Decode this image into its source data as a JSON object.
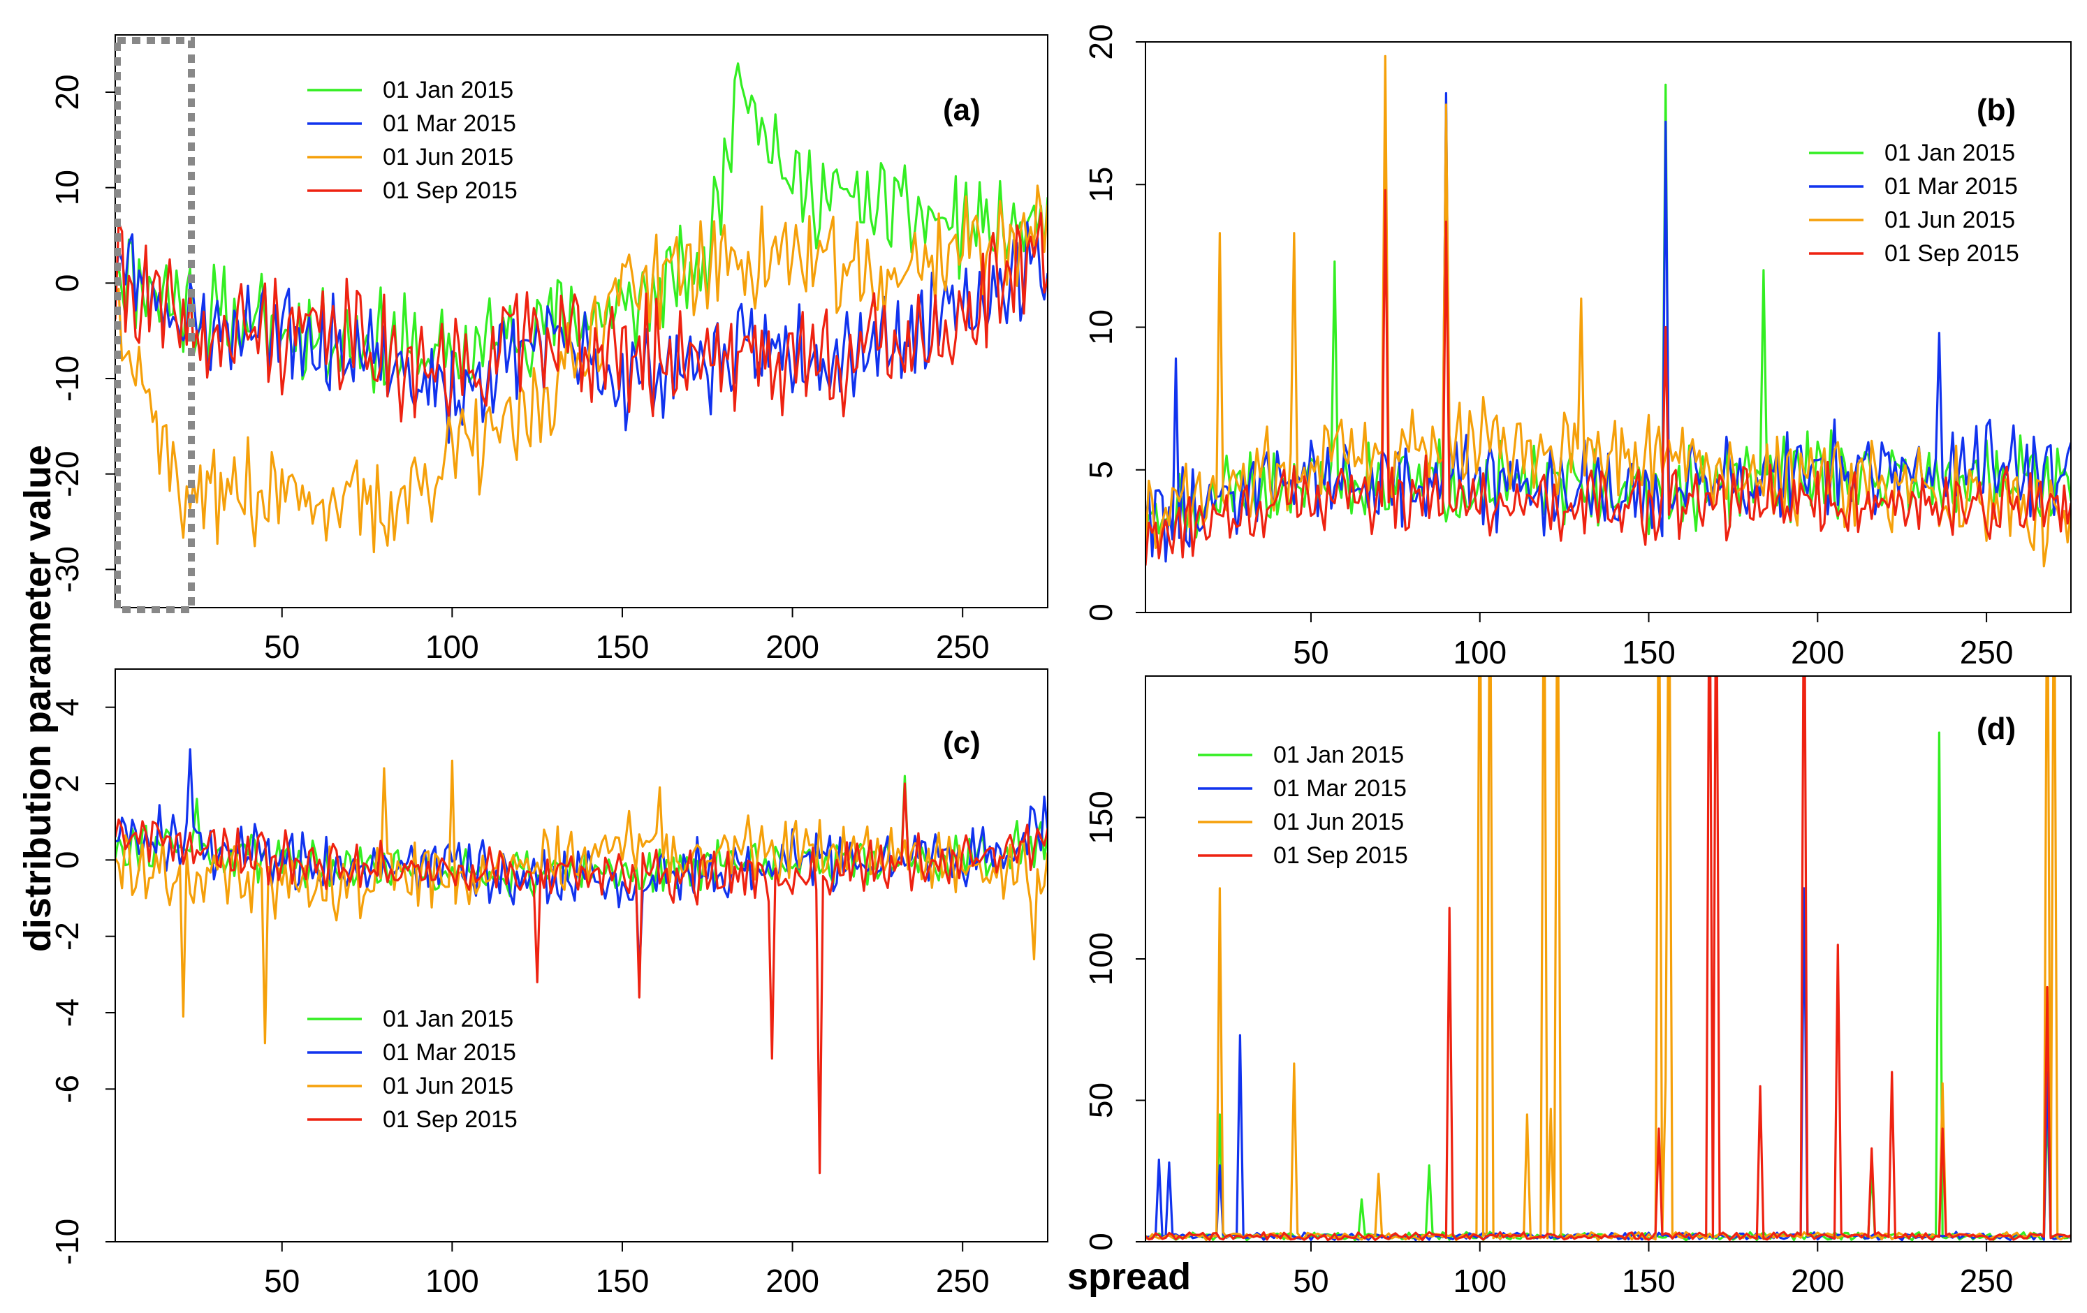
{
  "figure": {
    "y_axis_title": "distribution parameter value",
    "x_axis_title": "spread"
  },
  "colors": {
    "01 Jan 2015": "#33ee22",
    "01 Mar 2015": "#1133ee",
    "01 Jun 2015": "#f5a00a",
    "01 Sep 2015": "#ee2211",
    "highlight_box": "#888888"
  },
  "chart_data": [
    {
      "type": "line",
      "id": "a",
      "panel_label": "(a)",
      "title": "",
      "xlabel": "",
      "ylabel": "",
      "xlim": [
        1,
        275
      ],
      "ylim": [
        -34,
        26
      ],
      "x_ticks": [
        50,
        100,
        150,
        200,
        250
      ],
      "y_ticks": [
        -30,
        -20,
        -10,
        0,
        10,
        20
      ],
      "y_tick_labels": [
        "-30",
        "-20",
        "-10",
        "0",
        "10",
        "20"
      ],
      "legend": [
        "01 Jan 2015",
        "01 Mar 2015",
        "01 Jun 2015",
        "01 Sep 2015"
      ],
      "legend_position": "top-center",
      "highlight_region": {
        "x": [
          1,
          22
        ],
        "note": "dotted grey box"
      },
      "series_description": "daily-level series, ~275 points each; Jan/Mar/Sep oscillate around -5 (range ~-25 to 23), Jun mostly -15 to -30 in early half",
      "series": [
        {
          "name": "01 Jan 2015",
          "x_key": [
            0,
            25,
            50,
            75,
            100,
            125,
            150,
            175,
            185,
            200,
            225,
            250,
            275
          ],
          "values": [
            2,
            -3,
            -5,
            -6,
            -8,
            -4,
            -3,
            2,
            23,
            10,
            8,
            6,
            5
          ],
          "amp": 6,
          "seed": 11
        },
        {
          "name": "01 Mar 2015",
          "x_key": [
            0,
            25,
            50,
            75,
            100,
            125,
            150,
            175,
            200,
            225,
            250,
            275
          ],
          "values": [
            3,
            -5,
            -4,
            -8,
            -12,
            -6,
            -10,
            -8,
            -7,
            -6,
            -3,
            3
          ],
          "amp": 6,
          "seed": 23
        },
        {
          "name": "01 Jun 2015",
          "x_key": [
            0,
            20,
            40,
            60,
            80,
            100,
            120,
            140,
            150,
            175,
            200,
            225,
            250,
            275
          ],
          "values": [
            0,
            -22,
            -22,
            -22,
            -24,
            -18,
            -15,
            -6,
            0,
            2,
            3,
            0,
            4,
            6
          ],
          "amp": 6,
          "seed": 37
        },
        {
          "name": "01 Sep 2015",
          "x_key": [
            0,
            25,
            50,
            75,
            100,
            125,
            150,
            175,
            200,
            225,
            250,
            275
          ],
          "values": [
            1,
            -6,
            -5,
            -6,
            -10,
            -4,
            -8,
            -7,
            -8,
            -7,
            -4,
            4
          ],
          "amp": 7,
          "seed": 41
        }
      ]
    },
    {
      "type": "line",
      "id": "b",
      "panel_label": "(b)",
      "title": "",
      "xlabel": "",
      "ylabel": "",
      "xlim": [
        1,
        275
      ],
      "ylim": [
        0,
        20
      ],
      "x_ticks": [
        50,
        100,
        150,
        200,
        250
      ],
      "y_ticks": [
        0,
        5,
        10,
        15,
        20
      ],
      "y_tick_labels": [
        "0",
        "5",
        "10",
        "15",
        "20"
      ],
      "legend": [
        "01 Jan 2015",
        "01 Mar 2015",
        "01 Jun 2015",
        "01 Sep 2015"
      ],
      "legend_position": "top-right",
      "series_description": "positive scale-like parameter mostly between 2 and 8 with spikes at ~72 (19.5), ~90 (18), ~155 (18.5)",
      "series": [
        {
          "name": "01 Jan 2015",
          "x_key": [
            0,
            50,
            100,
            150,
            200,
            250,
            275
          ],
          "values": [
            3,
            4.8,
            4.5,
            4.2,
            4.8,
            4.8,
            4.5
          ],
          "amp": 1.6,
          "seed": 51,
          "spikes": [
            [
              57,
              12.3
            ],
            [
              155,
              18.5
            ],
            [
              184,
              12
            ]
          ]
        },
        {
          "name": "01 Mar 2015",
          "x_key": [
            0,
            50,
            100,
            150,
            200,
            250,
            275
          ],
          "values": [
            3,
            5,
            4.5,
            4.2,
            5,
            5.2,
            5
          ],
          "amp": 1.8,
          "seed": 62,
          "spikes": [
            [
              10,
              8.9
            ],
            [
              90,
              18.2
            ],
            [
              155,
              17.2
            ],
            [
              236,
              9.8
            ]
          ]
        },
        {
          "name": "01 Jun 2015",
          "x_key": [
            0,
            50,
            100,
            150,
            200,
            250,
            275
          ],
          "values": [
            3,
            5.5,
            6,
            5.5,
            4.5,
            4,
            3
          ],
          "amp": 1.8,
          "seed": 73,
          "spikes": [
            [
              23,
              13.3
            ],
            [
              45,
              13.3
            ],
            [
              72,
              19.5
            ],
            [
              90,
              17.8
            ],
            [
              130,
              11
            ]
          ]
        },
        {
          "name": "01 Sep 2015",
          "x_key": [
            0,
            50,
            100,
            150,
            200,
            250,
            275
          ],
          "values": [
            2.5,
            4.2,
            4,
            3.8,
            4,
            3.8,
            3.5
          ],
          "amp": 1.5,
          "seed": 84,
          "spikes": [
            [
              72,
              14.8
            ],
            [
              90,
              13.7
            ],
            [
              155,
              10
            ]
          ]
        }
      ]
    },
    {
      "type": "line",
      "id": "c",
      "panel_label": "(c)",
      "title": "",
      "xlabel": "",
      "ylabel": "",
      "xlim": [
        1,
        275
      ],
      "ylim": [
        -10,
        5
      ],
      "x_ticks": [
        50,
        100,
        150,
        200,
        250
      ],
      "y_ticks": [
        -10,
        -6,
        -4,
        -2,
        0,
        2,
        4
      ],
      "y_tick_labels": [
        "-10",
        "-6",
        "-4",
        "-2",
        "0",
        "2",
        "4"
      ],
      "legend": [
        "01 Jan 2015",
        "01 Mar 2015",
        "01 Jun 2015",
        "01 Sep 2015"
      ],
      "legend_position": "bottom-left",
      "series_description": "shape parameter oscillating around 0 (range ~-3 to 2.5) with deep dips near 155, 194 and 208",
      "series": [
        {
          "name": "01 Jan 2015",
          "x_key": [
            0,
            50,
            100,
            150,
            200,
            250,
            275
          ],
          "values": [
            0.5,
            0,
            -0.3,
            -0.3,
            0,
            0,
            0.5
          ],
          "amp": 0.7,
          "seed": 91,
          "spikes": [
            [
              25,
              1.6
            ],
            [
              233,
              2.2
            ]
          ]
        },
        {
          "name": "01 Mar 2015",
          "x_key": [
            0,
            50,
            100,
            150,
            200,
            250,
            275
          ],
          "values": [
            0.8,
            0,
            -0.3,
            -0.5,
            0,
            0,
            0.8
          ],
          "amp": 0.9,
          "seed": 102,
          "spikes": [
            [
              23,
              2.9
            ],
            [
              155,
              -3
            ]
          ]
        },
        {
          "name": "01 Jun 2015",
          "x_key": [
            0,
            50,
            100,
            150,
            200,
            250,
            275
          ],
          "values": [
            0,
            -0.7,
            -0.4,
            0.3,
            0.2,
            0,
            -0.5
          ],
          "amp": 1.0,
          "seed": 113,
          "spikes": [
            [
              21,
              -4.1
            ],
            [
              45,
              -4.8
            ],
            [
              80,
              2.4
            ],
            [
              100,
              2.6
            ],
            [
              161,
              1.9
            ],
            [
              271,
              -2.6
            ]
          ]
        },
        {
          "name": "01 Sep 2015",
          "x_key": [
            0,
            50,
            100,
            150,
            200,
            250,
            275
          ],
          "values": [
            0.8,
            0,
            -0.3,
            -0.5,
            -0.3,
            0,
            0.5
          ],
          "amp": 0.8,
          "seed": 124,
          "spikes": [
            [
              125,
              -3.2
            ],
            [
              155,
              -3.6
            ],
            [
              194,
              -5.2
            ],
            [
              208,
              -8.2
            ],
            [
              233,
              2.0
            ]
          ]
        }
      ]
    },
    {
      "type": "line",
      "id": "d",
      "panel_label": "(d)",
      "title": "",
      "xlabel": "spread",
      "ylabel": "",
      "xlim": [
        1,
        275
      ],
      "ylim": [
        0,
        200
      ],
      "x_ticks": [
        50,
        100,
        150,
        200,
        250
      ],
      "y_ticks": [
        0,
        50,
        100,
        150
      ],
      "y_tick_labels": [
        "0",
        "50",
        "100",
        "150"
      ],
      "legend": [
        "01 Jan 2015",
        "01 Mar 2015",
        "01 Jun 2015",
        "01 Sep 2015"
      ],
      "legend_position": "top-left",
      "series_description": "near-zero baseline with isolated spikes; several Jun and Sep spikes exceed the 200 upper limit",
      "series": [
        {
          "name": "01 Jan 2015",
          "x_key": [
            0,
            275
          ],
          "values": [
            2,
            2
          ],
          "amp": 1.5,
          "seed": 131,
          "spikes": [
            [
              23,
              45
            ],
            [
              65,
              15
            ],
            [
              85,
              27
            ],
            [
              216,
              25
            ],
            [
              236,
              180
            ],
            [
              268,
              50
            ]
          ]
        },
        {
          "name": "01 Mar 2015",
          "x_key": [
            0,
            275
          ],
          "values": [
            2,
            2
          ],
          "amp": 1.5,
          "seed": 142,
          "spikes": [
            [
              5,
              29
            ],
            [
              8,
              28
            ],
            [
              23,
              27
            ],
            [
              29,
              73
            ],
            [
              196,
              125
            ],
            [
              268,
              60
            ]
          ]
        },
        {
          "name": "01 Jun 2015",
          "x_key": [
            0,
            275
          ],
          "values": [
            2,
            2
          ],
          "amp": 1.5,
          "seed": 153,
          "spikes": [
            [
              23,
              125
            ],
            [
              45,
              63
            ],
            [
              70,
              24
            ],
            [
              100,
              260
            ],
            [
              103,
              260
            ],
            [
              114,
              45
            ],
            [
              119,
              260
            ],
            [
              121,
              47
            ],
            [
              123,
              260
            ],
            [
              153,
              260
            ],
            [
              155,
              57
            ],
            [
              156,
              260
            ],
            [
              237,
              56
            ],
            [
              268,
              260
            ],
            [
              270,
              260
            ]
          ]
        },
        {
          "name": "01 Sep 2015",
          "x_key": [
            0,
            275
          ],
          "values": [
            2,
            2
          ],
          "amp": 1.5,
          "seed": 164,
          "spikes": [
            [
              91,
              118
            ],
            [
              153,
              40
            ],
            [
              168,
              260
            ],
            [
              170,
              260
            ],
            [
              183,
              55
            ],
            [
              196,
              260
            ],
            [
              206,
              105
            ],
            [
              216,
              33
            ],
            [
              222,
              60
            ],
            [
              237,
              40
            ],
            [
              268,
              90
            ]
          ]
        }
      ]
    }
  ]
}
